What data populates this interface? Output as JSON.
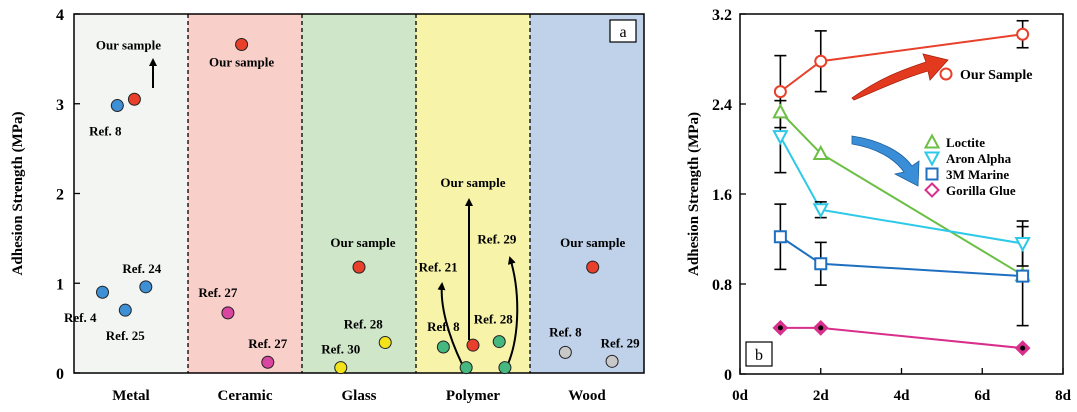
{
  "chart_data": [
    {
      "type": "scatter",
      "panel_label": "a",
      "ylabel": "Adhesion Strength (MPa)",
      "ylim": [
        0,
        4
      ],
      "yticks": [
        "0",
        "1",
        "2",
        "3",
        "4"
      ],
      "categories": [
        "Metal",
        "Ceramic",
        "Glass",
        "Polymer",
        "Wood"
      ],
      "band_colors": [
        "#f3f5f3",
        "#f9cfc9",
        "#cfe6c9",
        "#f7f3a9",
        "#c0d1ea"
      ],
      "points": [
        {
          "category": "Metal",
          "pos": 0.25,
          "value": 0.9,
          "label": "Ref. 4",
          "color": "#3d8fd6"
        },
        {
          "category": "Metal",
          "pos": 0.45,
          "value": 0.7,
          "label": "Ref. 25",
          "color": "#3d8fd6"
        },
        {
          "category": "Metal",
          "pos": 0.63,
          "value": 0.96,
          "label": "Ref. 24",
          "color": "#3d8fd6"
        },
        {
          "category": "Metal",
          "pos": 0.38,
          "value": 2.98,
          "label": "Ref. 8",
          "color": "#3d8fd6"
        },
        {
          "category": "Metal",
          "pos": 0.53,
          "value": 3.05,
          "label": "Our sample",
          "color": "#e8402a"
        },
        {
          "category": "Ceramic",
          "pos": 0.35,
          "value": 0.67,
          "label": "Ref. 27",
          "color": "#d946a0"
        },
        {
          "category": "Ceramic",
          "pos": 0.7,
          "value": 0.12,
          "label": "Ref. 27",
          "color": "#d946a0"
        },
        {
          "category": "Ceramic",
          "pos": 0.47,
          "value": 3.66,
          "label": "Our sample",
          "color": "#e8402a"
        },
        {
          "category": "Glass",
          "pos": 0.34,
          "value": 0.06,
          "label": "Ref. 30",
          "color": "#f2e21a"
        },
        {
          "category": "Glass",
          "pos": 0.73,
          "value": 0.34,
          "label": "Ref. 28",
          "color": "#f2e21a"
        },
        {
          "category": "Glass",
          "pos": 0.5,
          "value": 1.18,
          "label": "Our sample",
          "color": "#e8402a"
        },
        {
          "category": "Polymer",
          "pos": 0.24,
          "value": 0.29,
          "label": "Ref. 8",
          "color": "#45b880"
        },
        {
          "category": "Polymer",
          "pos": 0.44,
          "value": 0.06,
          "label": "Ref. 21",
          "color": "#45b880"
        },
        {
          "category": "Polymer",
          "pos": 0.73,
          "value": 0.35,
          "label": "Ref. 28",
          "color": "#45b880"
        },
        {
          "category": "Polymer",
          "pos": 0.78,
          "value": 0.06,
          "label": "Ref. 29",
          "color": "#45b880"
        },
        {
          "category": "Polymer",
          "pos": 0.5,
          "value": 0.31,
          "label": "Our sample",
          "color": "#e8402a"
        },
        {
          "category": "Wood",
          "pos": 0.31,
          "value": 0.23,
          "label": "Ref. 8",
          "color": "#c8c8c8"
        },
        {
          "category": "Wood",
          "pos": 0.72,
          "value": 0.13,
          "label": "Ref. 29",
          "color": "#c8c8c8"
        },
        {
          "category": "Wood",
          "pos": 0.55,
          "value": 1.18,
          "label": "Our sample",
          "color": "#e8402a"
        }
      ]
    },
    {
      "type": "line",
      "panel_label": "b",
      "ylabel": "Adhesion Strength (MPa)",
      "ylim": [
        0,
        3.2
      ],
      "yticks": [
        "0",
        "0.8",
        "1.6",
        "2.4",
        "3.2"
      ],
      "xlim": [
        0,
        8
      ],
      "xticks": [
        "0d",
        "2d",
        "4d",
        "6d",
        "8d"
      ],
      "x": [
        1,
        2,
        7
      ],
      "legend_position": "right",
      "series": [
        {
          "name": "Our Sample",
          "values": [
            2.51,
            2.78,
            3.02
          ],
          "errors": [
            0.32,
            0.27,
            0.12
          ],
          "color": "#e8402a",
          "marker": "circle"
        },
        {
          "name": "Loctite",
          "values": [
            2.33,
            1.96,
            0.88
          ],
          "errors": [
            0.0,
            0.0,
            0.0
          ],
          "color": "#6cbf45",
          "marker": "triangle-up"
        },
        {
          "name": "Aron Alpha",
          "values": [
            2.11,
            1.46,
            1.16
          ],
          "errors": [
            0.32,
            0.07,
            0.2
          ],
          "color": "#2ec8e8",
          "marker": "triangle-down"
        },
        {
          "name": "3M Marine",
          "values": [
            1.22,
            0.98,
            0.87
          ],
          "errors": [
            0.29,
            0.19,
            0.44
          ],
          "color": "#1f6fc0",
          "marker": "square"
        },
        {
          "name": "Gorilla Glue",
          "values": [
            0.41,
            0.41,
            0.23
          ],
          "errors": [
            0.0,
            0.0,
            0.0
          ],
          "color": "#d82f8c",
          "marker": "diamond"
        }
      ]
    }
  ]
}
